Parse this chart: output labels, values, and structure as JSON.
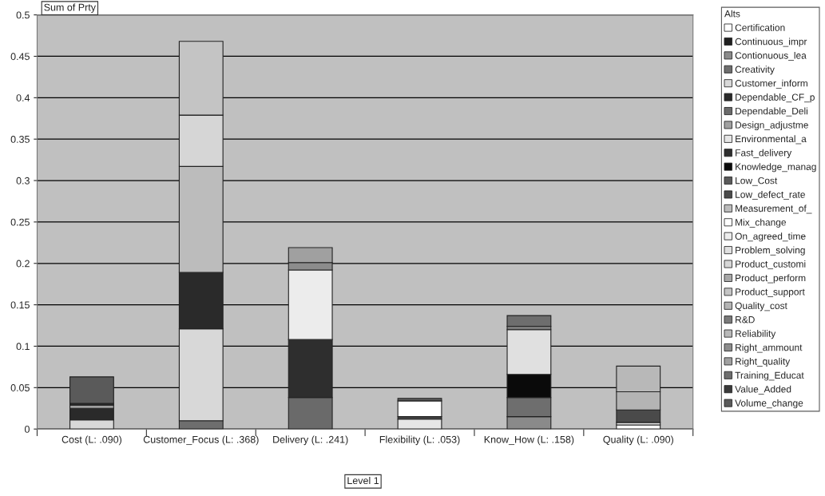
{
  "chart_data": {
    "type": "bar",
    "stacked": true,
    "ylabel": "Sum of Prty",
    "xlabel": "Level 1",
    "legend_title": "Alts",
    "legend": "right",
    "grid": "y",
    "categories": [
      "Cost (L: .090)",
      "Customer_Focus (L: .368)",
      "Delivery (L: .241)",
      "Flexibility (L: .053)",
      "Know_How (L: .158)",
      "Quality (L: .090)"
    ],
    "ylim": [
      0,
      0.5
    ],
    "yticks": [
      0,
      0.05,
      0.1,
      0.15,
      0.2,
      0.25,
      0.3,
      0.35,
      0.4,
      0.45,
      0.5
    ],
    "series": [
      {
        "name": "Certification",
        "color": "#ffffff",
        "values": [
          null,
          null,
          null,
          null,
          null,
          0.005
        ]
      },
      {
        "name": "Continuous_impr",
        "color": "#202020",
        "values": [
          null,
          null,
          null,
          null,
          null,
          null
        ]
      },
      {
        "name": "Contionuous_lea",
        "color": "#8a8a8a",
        "values": [
          null,
          null,
          null,
          null,
          0.015,
          null
        ]
      },
      {
        "name": "Creativity",
        "color": "#6e6e6e",
        "values": [
          null,
          0.01,
          null,
          null,
          0.023,
          null
        ]
      },
      {
        "name": "Customer_inform",
        "color": "#d8d8d8",
        "values": [
          0.011,
          0.111,
          null,
          null,
          null,
          null
        ]
      },
      {
        "name": "Dependable_CF_p",
        "color": "#2a2a2a",
        "values": [
          0.014,
          0.068,
          null,
          null,
          null,
          null
        ]
      },
      {
        "name": "Dependable_Deli",
        "color": "#6a6a6a",
        "values": [
          null,
          null,
          0.038,
          null,
          null,
          null
        ]
      },
      {
        "name": "Design_adjustme",
        "color": "#a0a0a0",
        "values": [
          0.004,
          null,
          null,
          null,
          null,
          null
        ]
      },
      {
        "name": "Environmental_a",
        "color": "#e6e6e6",
        "values": [
          null,
          null,
          null,
          0.012,
          null,
          0.003
        ]
      },
      {
        "name": "Fast_delivery",
        "color": "#2e2e2e",
        "values": [
          0.002,
          null,
          0.07,
          null,
          null,
          null
        ]
      },
      {
        "name": "Knowledge_manag",
        "color": "#0a0a0a",
        "values": [
          null,
          null,
          null,
          null,
          0.028,
          null
        ]
      },
      {
        "name": "Low_Cost",
        "color": "#5a5a5a",
        "values": [
          0.032,
          null,
          null,
          null,
          null,
          null
        ]
      },
      {
        "name": "Low_defect_rate",
        "color": "#4a4a4a",
        "values": [
          null,
          null,
          null,
          0.003,
          null,
          0.015
        ]
      },
      {
        "name": "Measurement_of_",
        "color": "#bcbcbc",
        "values": [
          null,
          0.128,
          null,
          null,
          null,
          null
        ]
      },
      {
        "name": "Mix_change",
        "color": "#ffffff",
        "values": [
          null,
          null,
          null,
          0.019,
          null,
          null
        ]
      },
      {
        "name": "On_agreed_time",
        "color": "#ececec",
        "values": [
          null,
          null,
          0.084,
          null,
          null,
          null
        ]
      },
      {
        "name": "Problem_solving",
        "color": "#e0e0e0",
        "values": [
          null,
          null,
          null,
          null,
          0.054,
          null
        ]
      },
      {
        "name": "Product_customi",
        "color": "#d6d6d6",
        "values": [
          null,
          0.062,
          null,
          null,
          null,
          null
        ]
      },
      {
        "name": "Product_perform",
        "color": "#a8a8a8",
        "values": [
          null,
          null,
          null,
          null,
          null,
          null
        ]
      },
      {
        "name": "Product_support",
        "color": "#c4c4c4",
        "values": [
          null,
          0.089,
          null,
          null,
          null,
          null
        ]
      },
      {
        "name": "Quality_cost",
        "color": "#b4b4b4",
        "values": [
          null,
          null,
          null,
          null,
          null,
          0.022
        ]
      },
      {
        "name": "R&D",
        "color": "#7a7a7a",
        "values": [
          null,
          null,
          null,
          null,
          0.004,
          null
        ]
      },
      {
        "name": "Reliability",
        "color": "#b8b8b8",
        "values": [
          null,
          null,
          null,
          null,
          null,
          0.031
        ]
      },
      {
        "name": "Right_ammount",
        "color": "#8c8c8c",
        "values": [
          null,
          null,
          0.009,
          null,
          null,
          null
        ]
      },
      {
        "name": "Right_quality",
        "color": "#a0a0a0",
        "values": [
          null,
          null,
          0.018,
          null,
          null,
          null
        ]
      },
      {
        "name": "Training_Educat",
        "color": "#6e6e6e",
        "values": [
          null,
          null,
          null,
          null,
          0.013,
          null
        ]
      },
      {
        "name": "Value_Added",
        "color": "#3a3a3a",
        "values": [
          null,
          null,
          null,
          null,
          null,
          null
        ]
      },
      {
        "name": "Volume_change",
        "color": "#5a5a5a",
        "values": [
          null,
          null,
          null,
          0.003,
          null,
          null
        ]
      }
    ]
  }
}
